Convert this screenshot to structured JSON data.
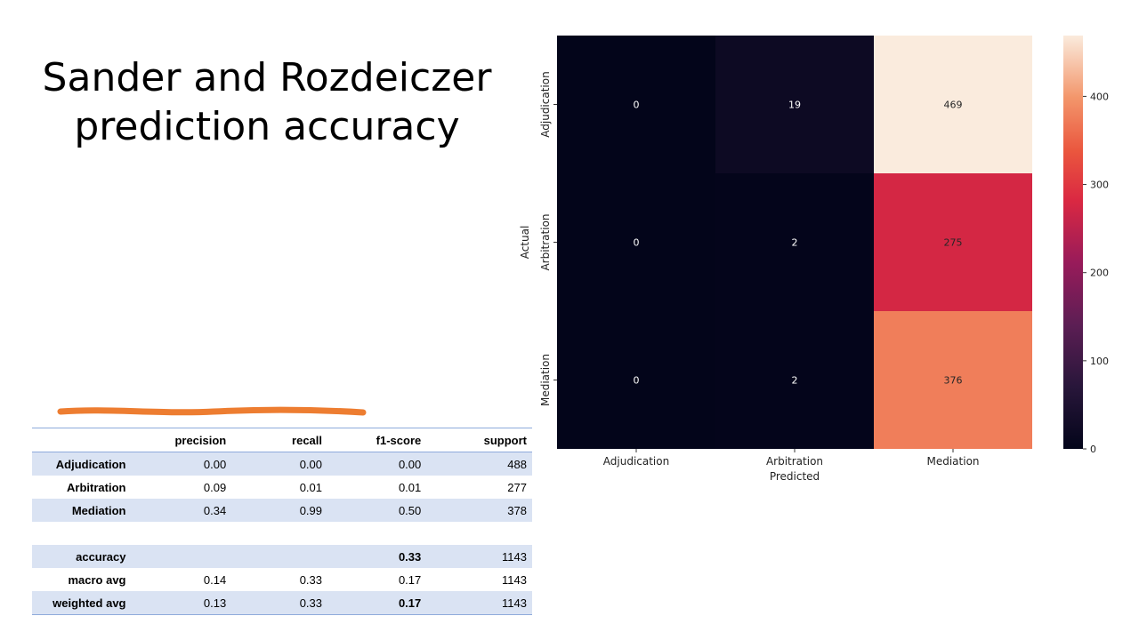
{
  "slide": {
    "title_lines": [
      "Sander and Rozdeiczer",
      "prediction accuracy"
    ],
    "accent_color": "#ed7d31"
  },
  "report": {
    "columns": [
      "",
      "precision",
      "recall",
      "f1-score",
      "support"
    ],
    "rows": [
      {
        "label": "Adjudication",
        "cells": [
          "0.00",
          "0.00",
          "0.00",
          "488"
        ],
        "band": true,
        "bold": []
      },
      {
        "label": "Arbitration",
        "cells": [
          "0.09",
          "0.01",
          "0.01",
          "277"
        ],
        "band": false,
        "bold": []
      },
      {
        "label": "Mediation",
        "cells": [
          "0.34",
          "0.99",
          "0.50",
          "378"
        ],
        "band": true,
        "bold": []
      },
      {
        "label": "",
        "cells": [
          "",
          "",
          "",
          ""
        ],
        "band": false,
        "bold": []
      },
      {
        "label": "accuracy",
        "cells": [
          "",
          "",
          "0.33",
          "1143"
        ],
        "band": true,
        "bold": [
          2
        ]
      },
      {
        "label": "macro avg",
        "cells": [
          "0.14",
          "0.33",
          "0.17",
          "1143"
        ],
        "band": false,
        "bold": []
      },
      {
        "label": "weighted avg",
        "cells": [
          "0.13",
          "0.33",
          "0.17",
          "1143"
        ],
        "band": true,
        "bold": [
          2
        ]
      }
    ],
    "header_rule_color": "#8eaadb",
    "band_color": "#dae3f3"
  },
  "chart_data": {
    "type": "heatmap",
    "title": "",
    "xlabel": "Predicted",
    "ylabel": "Actual",
    "x_categories": [
      "Adjudication",
      "Arbitration",
      "Mediation"
    ],
    "y_categories": [
      "Adjudication",
      "Arbitration",
      "Mediation"
    ],
    "values": [
      [
        0,
        19,
        469
      ],
      [
        0,
        2,
        275
      ],
      [
        0,
        2,
        376
      ]
    ],
    "colorbar": {
      "min": 0,
      "max": 469,
      "ticks": [
        0,
        100,
        200,
        300,
        400
      ]
    },
    "colormap": "rocket",
    "annotations": true,
    "grid": false
  }
}
